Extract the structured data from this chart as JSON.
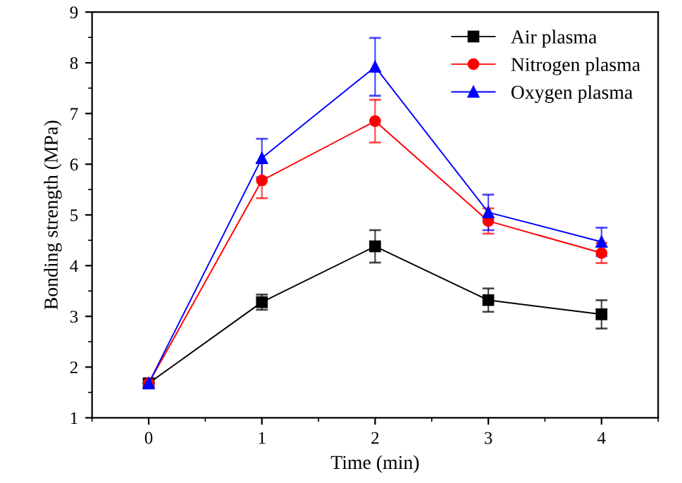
{
  "chart_data": {
    "type": "line",
    "xlabel": "Time (min)",
    "ylabel": "Bonding strength (MPa)",
    "x": [
      0,
      1,
      2,
      3,
      4
    ],
    "xlim": [
      -0.5,
      4.5
    ],
    "xticks": [
      0,
      1,
      2,
      3,
      4
    ],
    "ylim": [
      1,
      9
    ],
    "yticks": [
      1,
      2,
      3,
      4,
      5,
      6,
      7,
      8,
      9
    ],
    "grid": false,
    "legend": "top right",
    "series": [
      {
        "name": "Air plasma",
        "color": "#000000",
        "marker": "square",
        "values": [
          1.68,
          3.28,
          4.38,
          3.32,
          3.04
        ],
        "errors": [
          null,
          0.15,
          0.32,
          0.23,
          0.28
        ]
      },
      {
        "name": "Nitrogen plasma",
        "color": "#ff0000",
        "marker": "circle",
        "values": [
          1.68,
          5.68,
          6.85,
          4.88,
          4.25
        ],
        "errors": [
          null,
          0.35,
          0.42,
          0.25,
          0.2
        ]
      },
      {
        "name": "Oxygen plasma",
        "color": "#0000ff",
        "marker": "triangle",
        "values": [
          1.68,
          6.12,
          7.92,
          5.05,
          4.47
        ],
        "errors": [
          null,
          0.38,
          0.57,
          0.35,
          0.28
        ]
      }
    ]
  }
}
